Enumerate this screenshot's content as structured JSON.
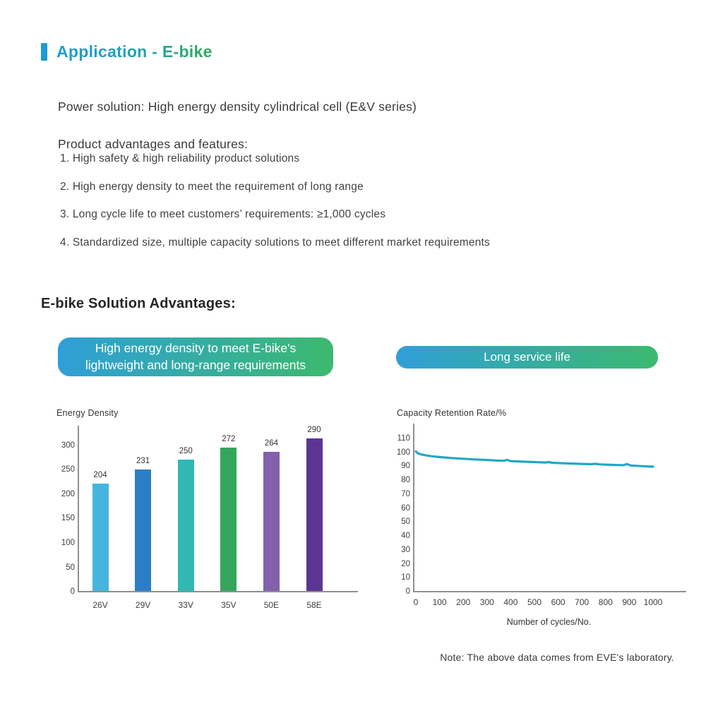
{
  "page": {
    "title": "Application - E-bike",
    "accent_color": "#1C9CD6",
    "title_gradient": [
      "#1F9BD7",
      "#2FAA5A"
    ]
  },
  "intro": {
    "power_solution": "Power solution: High energy density cylindrical cell (E&V series)",
    "features_heading": "Product advantages and features:",
    "features": [
      "1. High safety & high reliability product solutions",
      "2. High energy density to meet the requirement of long range",
      "3. Long cycle life to meet customers’ requirements: ≥1,000 cycles",
      "4. Standardized size, multiple capacity solutions to meet different market requirements"
    ]
  },
  "solution": {
    "heading": "E-bike Solution Advantages:",
    "badge_gradient": [
      "#2F9FD8",
      "#3CB96F"
    ],
    "badges": [
      {
        "lines": [
          "High energy density to meet E-bike's",
          "lightweight and long-range requirements"
        ]
      },
      {
        "lines": [
          "Long service life"
        ]
      }
    ]
  },
  "chart_data": [
    {
      "type": "bar",
      "title": "Energy Density",
      "categories": [
        "26V",
        "29V",
        "33V",
        "35V",
        "50E",
        "58E"
      ],
      "values": [
        204,
        231,
        250,
        272,
        264,
        290
      ],
      "bar_colors": [
        "#45B5DE",
        "#2B7EC6",
        "#32B8B2",
        "#33A65C",
        "#8260AC",
        "#5D3494"
      ],
      "yticks": [
        0,
        50,
        100,
        150,
        200,
        250,
        300
      ],
      "ylim": [
        0,
        339
      ],
      "bar_display_scale": 1.08,
      "xlabel": "",
      "ylabel": "Energy Density",
      "grid": false,
      "legend": false
    },
    {
      "type": "line",
      "title": "Capacity Retention Rate/%",
      "xlabel": "Number of cycles/No.",
      "ylabel": "Capacity Retention Rate/%",
      "xlim": [
        0,
        1000
      ],
      "ylim": [
        0,
        120
      ],
      "xticks": [
        0,
        100,
        200,
        300,
        400,
        500,
        600,
        700,
        800,
        900,
        1000
      ],
      "yticks": [
        0,
        10,
        20,
        30,
        40,
        50,
        60,
        70,
        80,
        90,
        100,
        110
      ],
      "grid": false,
      "legend": false,
      "series": [
        {
          "name": "capacity-retention",
          "color": "#23A7C5",
          "points": [
            [
              0,
              100
            ],
            [
              10,
              98.6
            ],
            [
              25,
              97.8
            ],
            [
              50,
              97.0
            ],
            [
              75,
              96.4
            ],
            [
              100,
              96.0
            ],
            [
              150,
              95.3
            ],
            [
              200,
              94.8
            ],
            [
              250,
              94.3
            ],
            [
              300,
              93.9
            ],
            [
              340,
              93.5
            ],
            [
              370,
              93.3
            ],
            [
              385,
              93.9
            ],
            [
              400,
              93.1
            ],
            [
              450,
              92.7
            ],
            [
              500,
              92.4
            ],
            [
              545,
              92.1
            ],
            [
              560,
              92.4
            ],
            [
              575,
              91.9
            ],
            [
              600,
              91.7
            ],
            [
              650,
              91.4
            ],
            [
              700,
              91.1
            ],
            [
              740,
              90.9
            ],
            [
              755,
              91.2
            ],
            [
              775,
              90.8
            ],
            [
              800,
              90.6
            ],
            [
              850,
              90.3
            ],
            [
              875,
              90.2
            ],
            [
              890,
              91.0
            ],
            [
              905,
              90.0
            ],
            [
              950,
              89.5
            ],
            [
              1000,
              89.1
            ]
          ]
        }
      ]
    }
  ],
  "note": "Note: The above data comes from EVE's laboratory."
}
